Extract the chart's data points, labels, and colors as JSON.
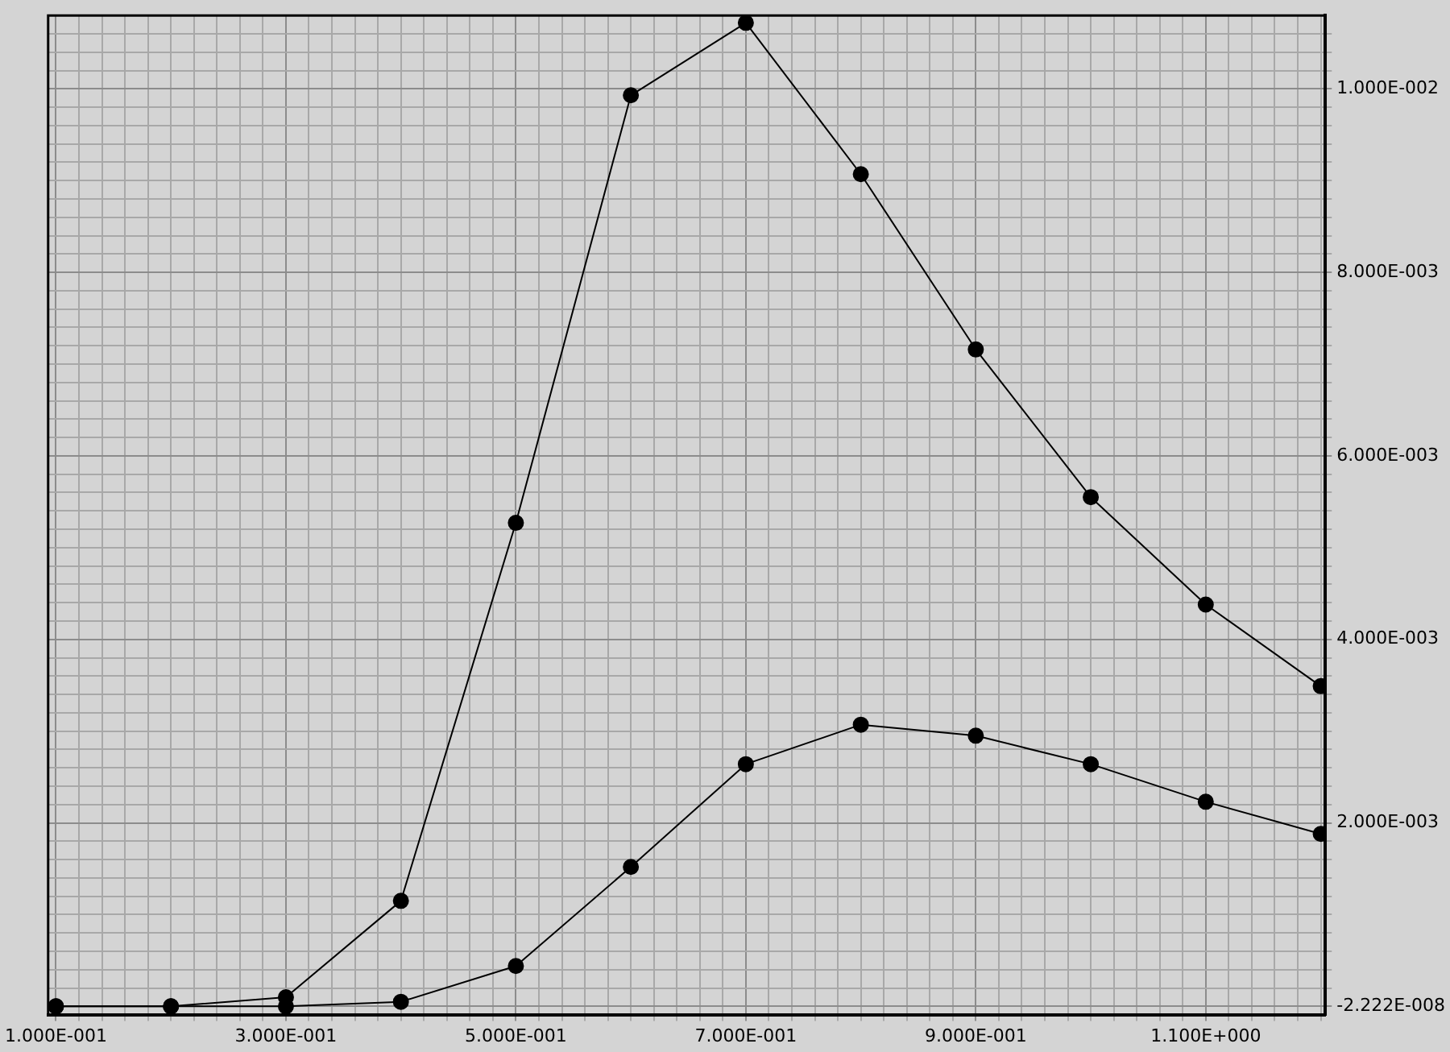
{
  "chart_data": {
    "type": "line",
    "x": [
      0.1,
      0.2,
      0.3,
      0.4,
      0.5,
      0.6,
      0.7,
      0.8,
      0.9,
      1.0,
      1.1,
      1.2
    ],
    "series": [
      {
        "color": "#000000",
        "values": [
          0,
          0,
          0.0001,
          0.00115,
          0.00527,
          0.00993,
          0.01072,
          0.00907,
          0.00716,
          0.00555,
          0.00438,
          0.00349
        ]
      },
      {
        "color": "#000000",
        "values": [
          0,
          0,
          0,
          5e-05,
          0.00044,
          0.00152,
          0.00264,
          0.00307,
          0.00295,
          0.00264,
          0.00223,
          0.00188
        ]
      }
    ],
    "xlim": [
      0.0932,
      1.204
    ],
    "ylim": [
      -9e-05,
      0.0108
    ],
    "xticks": [
      {
        "value": 0.1,
        "label": "1.000E-001"
      },
      {
        "value": 0.12,
        "label": null
      },
      {
        "value": 0.14,
        "label": null
      },
      {
        "value": 0.16,
        "label": null
      },
      {
        "value": 0.18,
        "label": null
      },
      {
        "value": 0.2,
        "label": null
      },
      {
        "value": 0.22,
        "label": null
      },
      {
        "value": 0.24,
        "label": null
      },
      {
        "value": 0.26,
        "label": null
      },
      {
        "value": 0.28,
        "label": null
      },
      {
        "value": 0.3,
        "label": "3.000E-001"
      },
      {
        "value": 0.32,
        "label": null
      },
      {
        "value": 0.34,
        "label": null
      },
      {
        "value": 0.36,
        "label": null
      },
      {
        "value": 0.38,
        "label": null
      },
      {
        "value": 0.4,
        "label": null
      },
      {
        "value": 0.42,
        "label": null
      },
      {
        "value": 0.44,
        "label": null
      },
      {
        "value": 0.46,
        "label": null
      },
      {
        "value": 0.48,
        "label": null
      },
      {
        "value": 0.5,
        "label": "5.000E-001"
      },
      {
        "value": 0.52,
        "label": null
      },
      {
        "value": 0.54,
        "label": null
      },
      {
        "value": 0.56,
        "label": null
      },
      {
        "value": 0.58,
        "label": null
      },
      {
        "value": 0.6,
        "label": null
      },
      {
        "value": 0.62,
        "label": null
      },
      {
        "value": 0.64,
        "label": null
      },
      {
        "value": 0.66,
        "label": null
      },
      {
        "value": 0.68,
        "label": null
      },
      {
        "value": 0.7,
        "label": "7.000E-001"
      },
      {
        "value": 0.72,
        "label": null
      },
      {
        "value": 0.74,
        "label": null
      },
      {
        "value": 0.76,
        "label": null
      },
      {
        "value": 0.78,
        "label": null
      },
      {
        "value": 0.8,
        "label": null
      },
      {
        "value": 0.82,
        "label": null
      },
      {
        "value": 0.84,
        "label": null
      },
      {
        "value": 0.86,
        "label": null
      },
      {
        "value": 0.88,
        "label": null
      },
      {
        "value": 0.9,
        "label": "9.000E-001"
      },
      {
        "value": 0.92,
        "label": null
      },
      {
        "value": 0.94,
        "label": null
      },
      {
        "value": 0.96,
        "label": null
      },
      {
        "value": 0.98,
        "label": null
      },
      {
        "value": 1.0,
        "label": null
      },
      {
        "value": 1.02,
        "label": null
      },
      {
        "value": 1.04,
        "label": null
      },
      {
        "value": 1.06,
        "label": null
      },
      {
        "value": 1.08,
        "label": null
      },
      {
        "value": 1.1,
        "label": "1.100E+000"
      },
      {
        "value": 1.12,
        "label": null
      },
      {
        "value": 1.14,
        "label": null
      },
      {
        "value": 1.16,
        "label": null
      },
      {
        "value": 1.18,
        "label": null
      },
      {
        "value": 1.2,
        "label": null
      }
    ],
    "yticks": [
      {
        "value": -2.222e-08,
        "label": "-2.222E-008"
      },
      {
        "value": 0.0002,
        "label": null
      },
      {
        "value": 0.0004,
        "label": null
      },
      {
        "value": 0.0006,
        "label": null
      },
      {
        "value": 0.0008,
        "label": null
      },
      {
        "value": 0.001,
        "label": null
      },
      {
        "value": 0.0012,
        "label": null
      },
      {
        "value": 0.0014,
        "label": null
      },
      {
        "value": 0.0016,
        "label": null
      },
      {
        "value": 0.0018,
        "label": null
      },
      {
        "value": 0.002,
        "label": "2.000E-003"
      },
      {
        "value": 0.0022,
        "label": null
      },
      {
        "value": 0.0024,
        "label": null
      },
      {
        "value": 0.0026,
        "label": null
      },
      {
        "value": 0.0028,
        "label": null
      },
      {
        "value": 0.003,
        "label": null
      },
      {
        "value": 0.0032,
        "label": null
      },
      {
        "value": 0.0034,
        "label": null
      },
      {
        "value": 0.0036,
        "label": null
      },
      {
        "value": 0.0038,
        "label": null
      },
      {
        "value": 0.004,
        "label": "4.000E-003"
      },
      {
        "value": 0.0042,
        "label": null
      },
      {
        "value": 0.0044,
        "label": null
      },
      {
        "value": 0.0046,
        "label": null
      },
      {
        "value": 0.0048,
        "label": null
      },
      {
        "value": 0.005,
        "label": null
      },
      {
        "value": 0.0052,
        "label": null
      },
      {
        "value": 0.0054,
        "label": null
      },
      {
        "value": 0.0056,
        "label": null
      },
      {
        "value": 0.0058,
        "label": null
      },
      {
        "value": 0.006,
        "label": "6.000E-003"
      },
      {
        "value": 0.0062,
        "label": null
      },
      {
        "value": 0.0064,
        "label": null
      },
      {
        "value": 0.0066,
        "label": null
      },
      {
        "value": 0.0068,
        "label": null
      },
      {
        "value": 0.007,
        "label": null
      },
      {
        "value": 0.0072,
        "label": null
      },
      {
        "value": 0.0074,
        "label": null
      },
      {
        "value": 0.0076,
        "label": null
      },
      {
        "value": 0.0078,
        "label": null
      },
      {
        "value": 0.008,
        "label": "8.000E-003"
      },
      {
        "value": 0.0082,
        "label": null
      },
      {
        "value": 0.0084,
        "label": null
      },
      {
        "value": 0.0086,
        "label": null
      },
      {
        "value": 0.0088,
        "label": null
      },
      {
        "value": 0.009,
        "label": null
      },
      {
        "value": 0.0092,
        "label": null
      },
      {
        "value": 0.0094,
        "label": null
      },
      {
        "value": 0.0096,
        "label": null
      },
      {
        "value": 0.0098,
        "label": null
      },
      {
        "value": 0.01,
        "label": "1.000E-002"
      },
      {
        "value": 0.0102,
        "label": null
      },
      {
        "value": 0.0104,
        "label": null
      },
      {
        "value": 0.0106,
        "label": null
      }
    ],
    "grid": true,
    "legend": false,
    "marker": "circle",
    "line_style": "solid"
  }
}
